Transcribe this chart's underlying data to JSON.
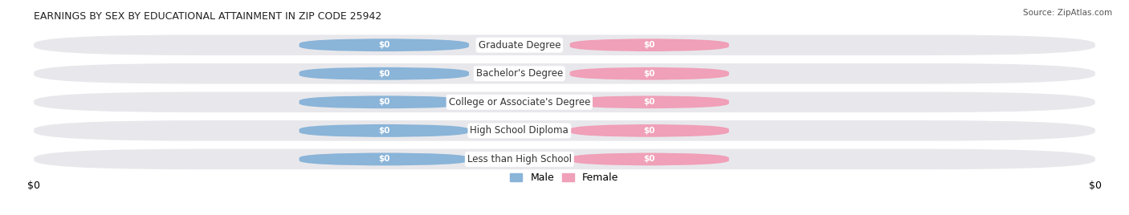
{
  "title": "EARNINGS BY SEX BY EDUCATIONAL ATTAINMENT IN ZIP CODE 25942",
  "source": "Source: ZipAtlas.com",
  "categories": [
    "Less than High School",
    "High School Diploma",
    "College or Associate's Degree",
    "Bachelor's Degree",
    "Graduate Degree"
  ],
  "male_values": [
    0,
    0,
    0,
    0,
    0
  ],
  "female_values": [
    0,
    0,
    0,
    0,
    0
  ],
  "male_color": "#8ab4d8",
  "female_color": "#f0a0b8",
  "row_bg_color": "#e8e8ec",
  "title_fontsize": 9,
  "label_fontsize": 7.5,
  "tick_fontsize": 9,
  "background_color": "#ffffff",
  "label_color": "#ffffff",
  "category_color": "#333333",
  "source_color": "#555555"
}
